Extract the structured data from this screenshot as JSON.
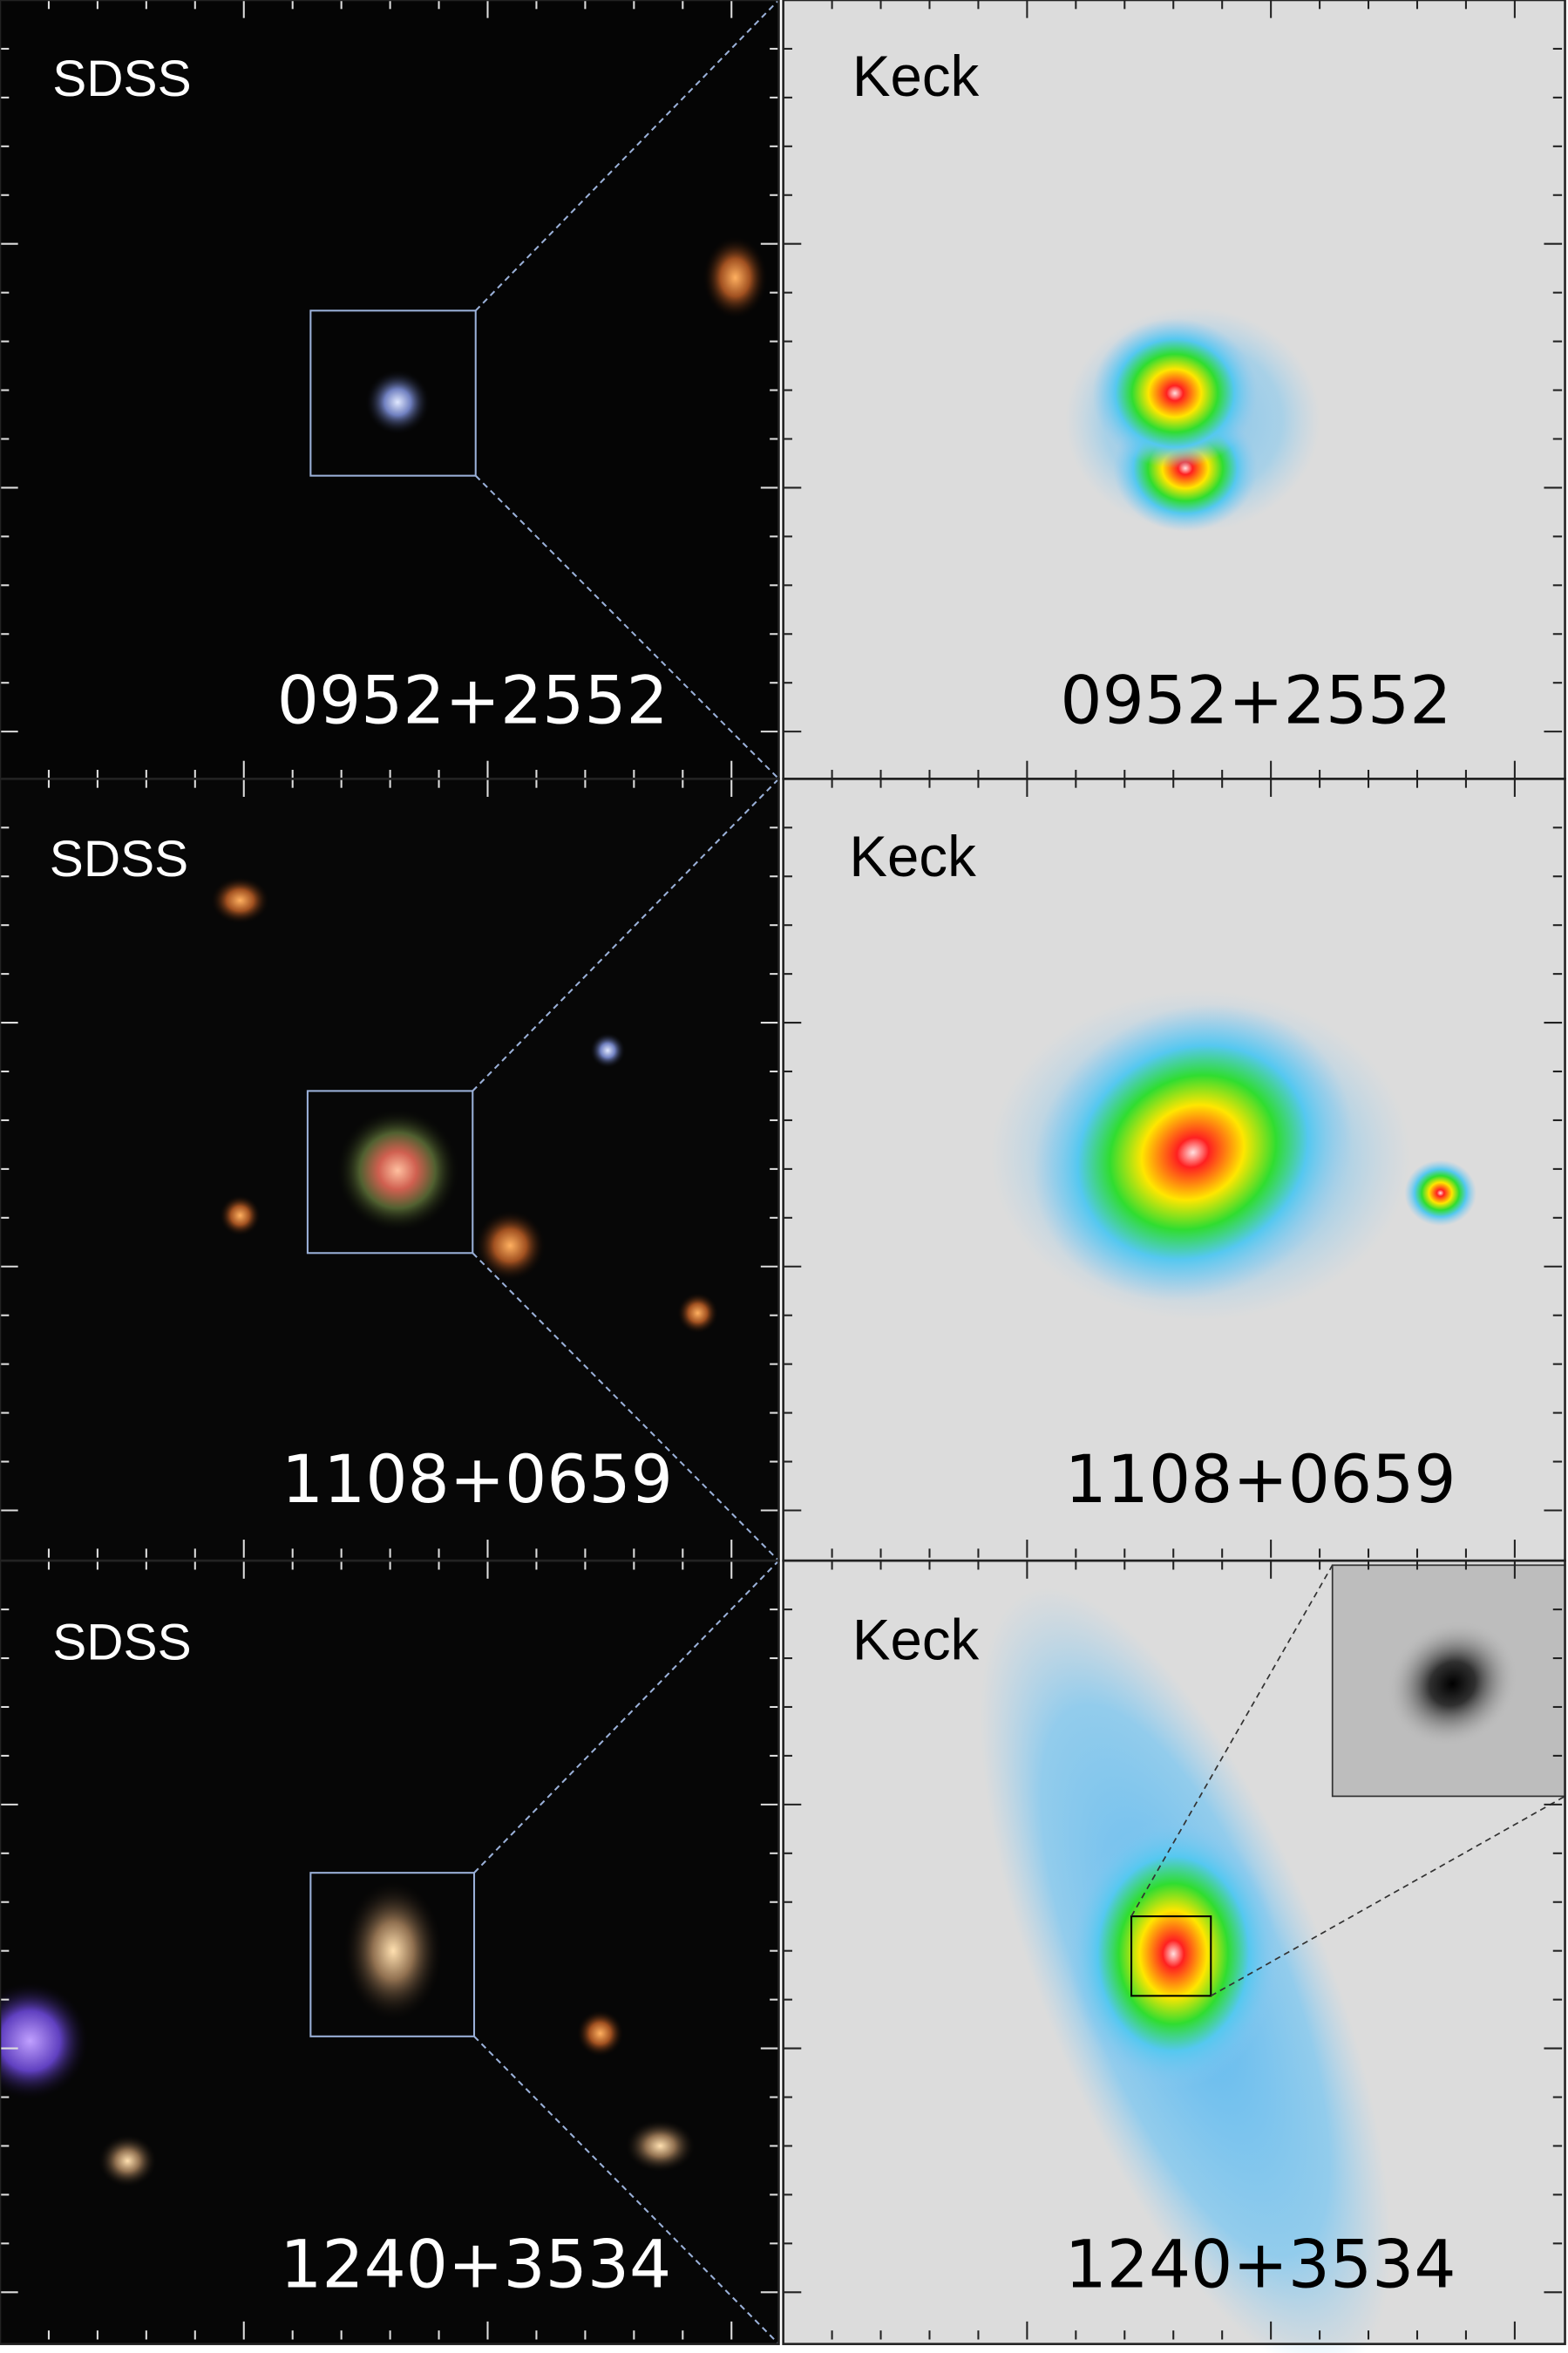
{
  "panels": [
    {
      "left_label": "SDSS",
      "right_label": "Keck",
      "name": "0952+2552"
    },
    {
      "left_label": "SDSS",
      "right_label": "Keck",
      "name": "1108+0659"
    },
    {
      "left_label": "SDSS",
      "right_label": "Keck",
      "name": "1240+3534"
    }
  ]
}
